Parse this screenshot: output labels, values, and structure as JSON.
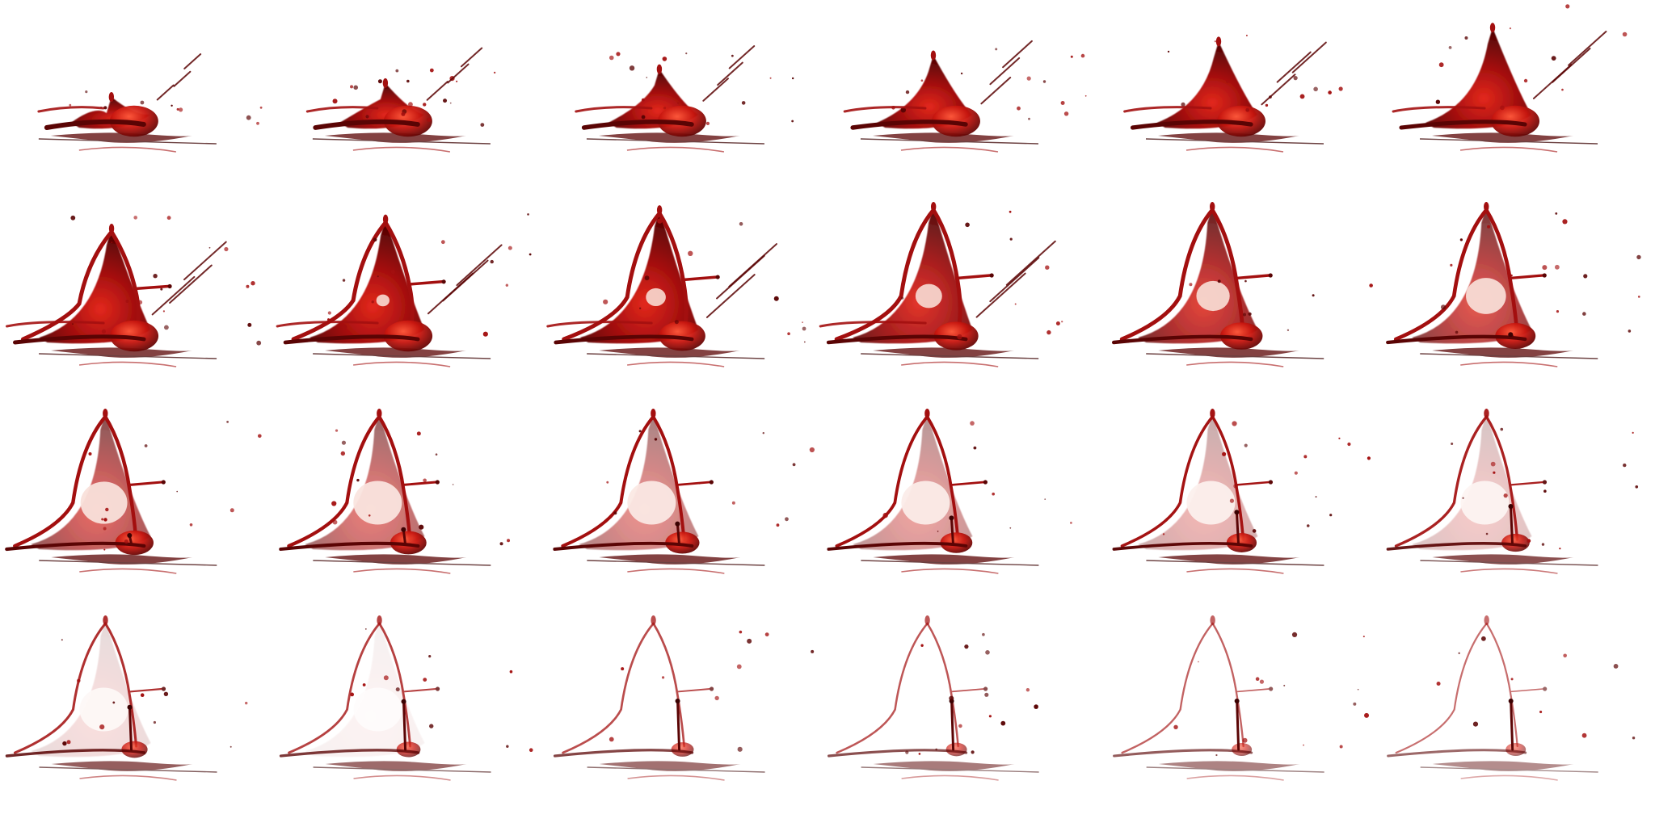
{
  "sprite_sheet": {
    "rows": 4,
    "columns": 6,
    "frame_count": 24,
    "background_color": "#ffffff",
    "colors": {
      "deep": "#5a0404",
      "main": "#a30f0f",
      "bright": "#e3281c",
      "shadow": "#3b0202",
      "highlight": "#f6d2c8"
    },
    "frames": [
      {
        "phase": 0.0
      },
      {
        "phase": 0.06
      },
      {
        "phase": 0.12
      },
      {
        "phase": 0.18
      },
      {
        "phase": 0.24
      },
      {
        "phase": 0.3
      },
      {
        "phase": 0.36
      },
      {
        "phase": 0.4
      },
      {
        "phase": 0.44
      },
      {
        "phase": 0.48
      },
      {
        "phase": 0.52
      },
      {
        "phase": 0.56
      },
      {
        "phase": 0.6
      },
      {
        "phase": 0.64
      },
      {
        "phase": 0.68
      },
      {
        "phase": 0.72
      },
      {
        "phase": 0.76
      },
      {
        "phase": 0.8
      },
      {
        "phase": 0.84
      },
      {
        "phase": 0.88
      },
      {
        "phase": 0.91
      },
      {
        "phase": 0.94
      },
      {
        "phase": 0.97
      },
      {
        "phase": 1.0
      }
    ]
  }
}
